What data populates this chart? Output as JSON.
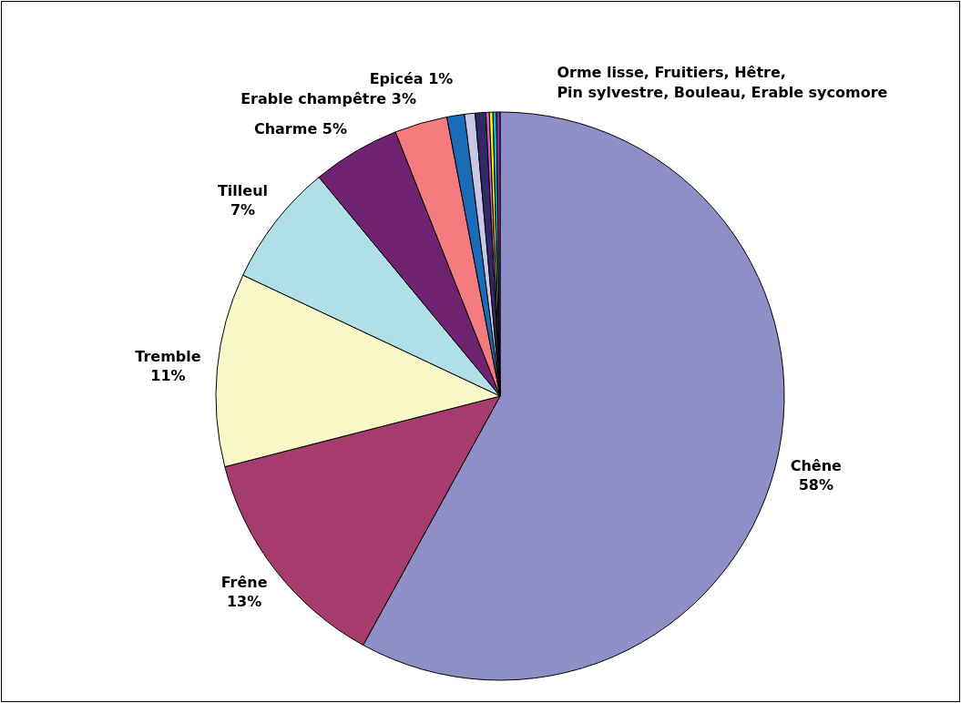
{
  "chart_data": {
    "type": "pie",
    "categories": [
      "Chêne",
      "Frêne",
      "Tremble",
      "Tilleul",
      "Charme",
      "Erable champêtre",
      "Epicéa",
      null,
      null,
      null,
      null,
      null,
      null
    ],
    "values": [
      58,
      13,
      11,
      7,
      5,
      3,
      1,
      0.6,
      0.6,
      0.2,
      0.2,
      0.2,
      0.2
    ],
    "colors": [
      "#8f8fc8",
      "#a63c6e",
      "#f8f7c8",
      "#b0dfe8",
      "#6f2370",
      "#f47c7e",
      "#1a6cb8",
      "#c8c7e6",
      "#32286a",
      "#c864b4",
      "#f4f020",
      "#10b8c8",
      "#8030a0"
    ],
    "value_labels": [
      "58%",
      "13%",
      "11%",
      "7%",
      "5%",
      "3%",
      "1%",
      null,
      null,
      null,
      null,
      null,
      null
    ],
    "annotations": [
      "Orme lisse, Fruitiers, Hêtre,\nPin sylvestre, Bouleau, Erable sycomore"
    ]
  }
}
